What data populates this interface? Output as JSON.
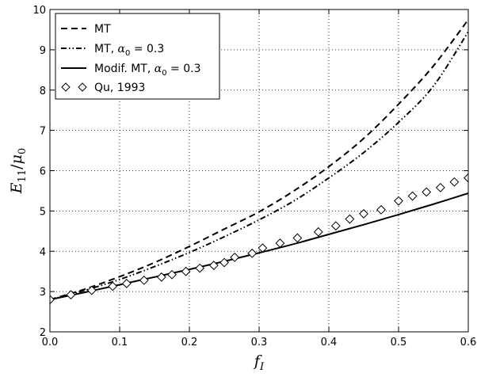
{
  "chart_data": {
    "type": "line",
    "title": "",
    "xlabel": "f_I",
    "ylabel": "E_11/μ_0",
    "xlim": [
      0.0,
      0.6
    ],
    "ylim": [
      2,
      10
    ],
    "xticks": [
      0.0,
      0.1,
      0.2,
      0.3,
      0.4,
      0.5,
      0.6
    ],
    "yticks": [
      2,
      3,
      4,
      5,
      6,
      7,
      8,
      9,
      10
    ],
    "xtick_labels": [
      "0.0",
      "0.1",
      "0.2",
      "0.3",
      "0.4",
      "0.5",
      "0.6"
    ],
    "ytick_labels": [
      "2",
      "3",
      "4",
      "5",
      "6",
      "7",
      "8",
      "9",
      "10"
    ],
    "grid": true,
    "legend_position": "top-left",
    "series": [
      {
        "name": "MT",
        "style": "dashed",
        "color": "#000000",
        "x": [
          0.0,
          0.05,
          0.1,
          0.15,
          0.2,
          0.25,
          0.3,
          0.35,
          0.4,
          0.45,
          0.5,
          0.55,
          0.6
        ],
        "y": [
          2.8,
          3.06,
          3.37,
          3.72,
          4.12,
          4.55,
          4.98,
          5.5,
          6.1,
          6.8,
          7.65,
          8.6,
          9.75
        ]
      },
      {
        "name": "MT, α0 = 0.3",
        "legend_prefix": "MT, ",
        "legend_math": "α",
        "legend_sub": "0",
        "legend_suffix": " = 0.3",
        "style": "dash-dot-dot",
        "color": "#000000",
        "x": [
          0.0,
          0.05,
          0.1,
          0.15,
          0.2,
          0.25,
          0.3,
          0.35,
          0.4,
          0.45,
          0.5,
          0.55,
          0.6
        ],
        "y": [
          2.8,
          3.03,
          3.3,
          3.62,
          3.97,
          4.36,
          4.78,
          5.25,
          5.82,
          6.45,
          7.2,
          8.1,
          9.45
        ]
      },
      {
        "name": "Modif. MT, α0 = 0.3",
        "legend_prefix": "Modif. MT, ",
        "legend_math": "α",
        "legend_sub": "0",
        "legend_suffix": " = 0.3",
        "style": "solid",
        "color": "#000000",
        "x": [
          0.0,
          0.05,
          0.1,
          0.15,
          0.2,
          0.25,
          0.3,
          0.35,
          0.4,
          0.45,
          0.5,
          0.55,
          0.6
        ],
        "y": [
          2.8,
          2.98,
          3.17,
          3.36,
          3.55,
          3.75,
          3.96,
          4.18,
          4.42,
          4.66,
          4.91,
          5.17,
          5.44
        ]
      },
      {
        "name": "Qu, 1993",
        "style": "markers",
        "marker": "diamond",
        "color": "#000000",
        "x": [
          0.0,
          0.03,
          0.06,
          0.09,
          0.11,
          0.135,
          0.16,
          0.175,
          0.195,
          0.215,
          0.235,
          0.25,
          0.265,
          0.29,
          0.305,
          0.33,
          0.355,
          0.385,
          0.41,
          0.43,
          0.45,
          0.475,
          0.5,
          0.52,
          0.54,
          0.56,
          0.58,
          0.6
        ],
        "y": [
          2.8,
          2.92,
          3.03,
          3.13,
          3.2,
          3.28,
          3.36,
          3.42,
          3.5,
          3.58,
          3.65,
          3.72,
          3.85,
          3.95,
          4.08,
          4.2,
          4.33,
          4.48,
          4.63,
          4.8,
          4.93,
          5.03,
          5.25,
          5.37,
          5.47,
          5.58,
          5.72,
          5.82
        ]
      }
    ]
  }
}
